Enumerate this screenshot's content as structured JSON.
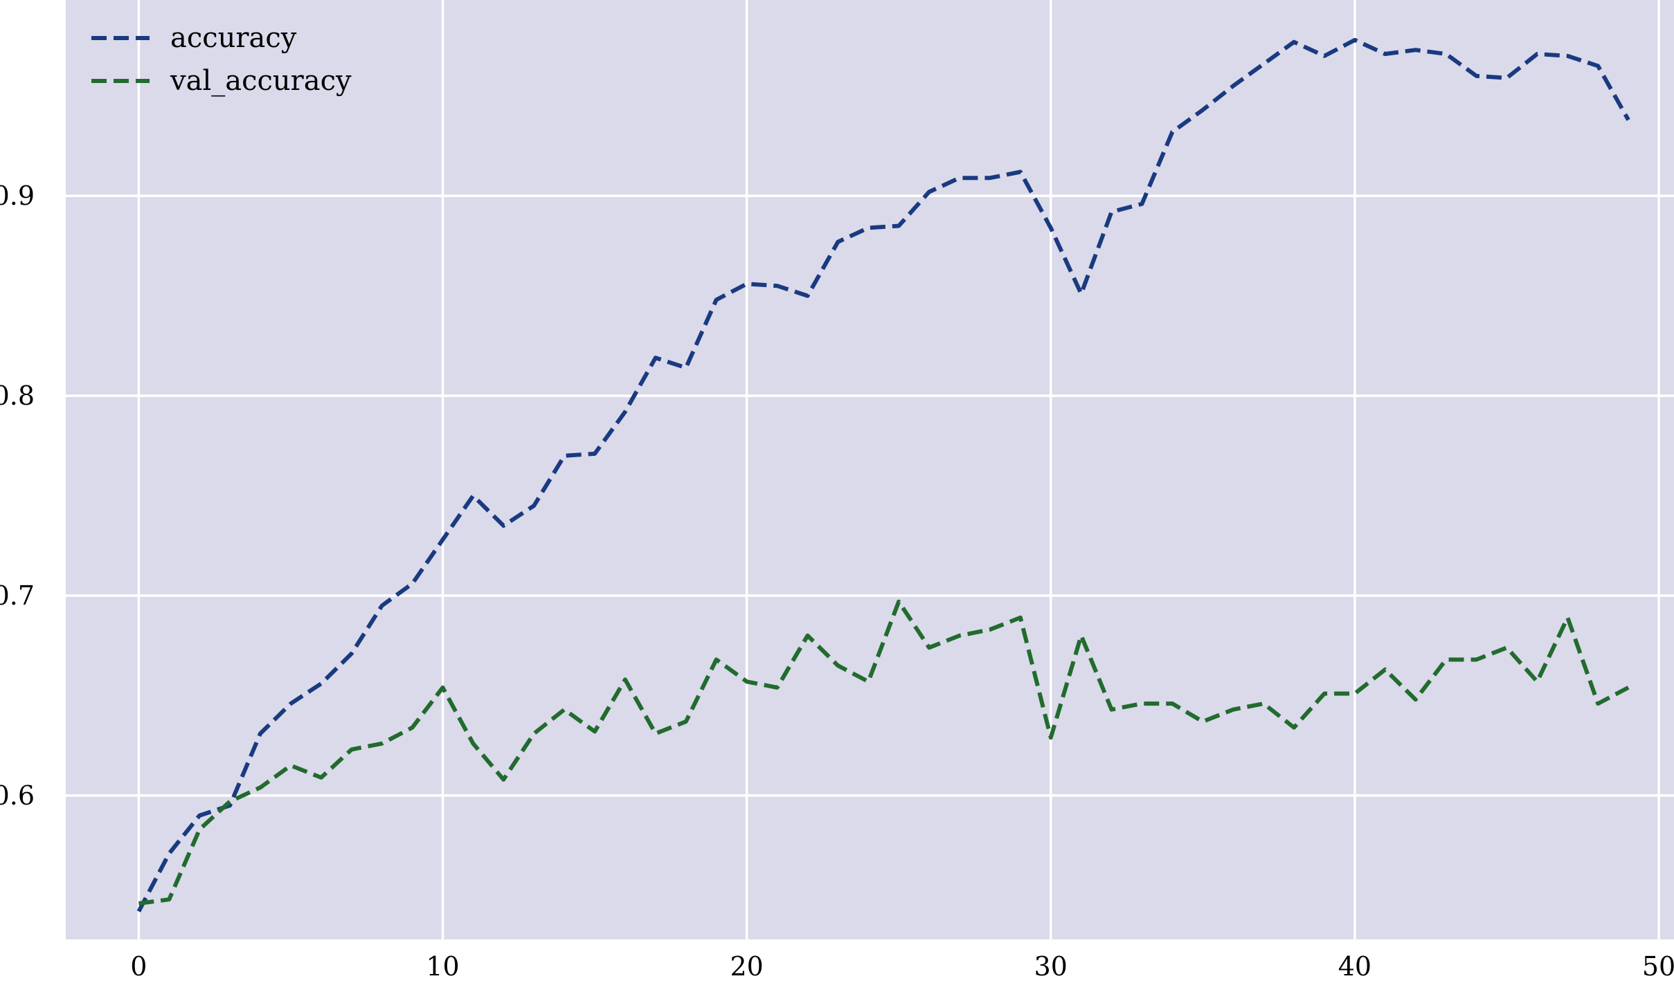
{
  "chart_data": {
    "type": "line",
    "title": "",
    "xlabel": "",
    "ylabel": "",
    "xlim": [
      -2.4,
      50.5
    ],
    "ylim": [
      0.528,
      0.998
    ],
    "x_ticks": [
      0,
      10,
      20,
      30,
      40,
      50
    ],
    "y_ticks": [
      0.6,
      0.7,
      0.8,
      0.9
    ],
    "x_tick_labels": [
      "0",
      "10",
      "20",
      "30",
      "40",
      "50"
    ],
    "y_tick_labels": [
      "0.6",
      "0.7",
      "0.8",
      "0.9"
    ],
    "grid": true,
    "background_color": "#dadaea",
    "grid_color": "#ffffff",
    "legend_position": "upper-left",
    "x": [
      0,
      1,
      2,
      3,
      4,
      5,
      6,
      7,
      8,
      9,
      10,
      11,
      12,
      13,
      14,
      15,
      16,
      17,
      18,
      19,
      20,
      21,
      22,
      23,
      24,
      25,
      26,
      27,
      28,
      29,
      30,
      31,
      32,
      33,
      34,
      35,
      36,
      37,
      38,
      39,
      40,
      41,
      42,
      43,
      44,
      45,
      46,
      47,
      48,
      49
    ],
    "series": [
      {
        "name": "accuracy",
        "color": "#1a3a80",
        "line_style": "dashed",
        "values": [
          0.542,
          0.571,
          0.59,
          0.595,
          0.631,
          0.646,
          0.656,
          0.671,
          0.695,
          0.706,
          0.728,
          0.75,
          0.735,
          0.745,
          0.77,
          0.771,
          0.792,
          0.819,
          0.814,
          0.848,
          0.856,
          0.855,
          0.85,
          0.877,
          0.884,
          0.885,
          0.902,
          0.909,
          0.909,
          0.912,
          0.884,
          0.851,
          0.892,
          0.896,
          0.932,
          0.943,
          0.955,
          0.966,
          0.977,
          0.97,
          0.978,
          0.971,
          0.973,
          0.971,
          0.96,
          0.959,
          0.971,
          0.97,
          0.965,
          0.938
        ]
      },
      {
        "name": "val_accuracy",
        "color": "#226b2e",
        "line_style": "dashed",
        "values": [
          0.546,
          0.548,
          0.583,
          0.597,
          0.604,
          0.615,
          0.609,
          0.623,
          0.626,
          0.634,
          0.654,
          0.626,
          0.608,
          0.631,
          0.643,
          0.632,
          0.658,
          0.631,
          0.637,
          0.668,
          0.657,
          0.654,
          0.68,
          0.665,
          0.657,
          0.697,
          0.674,
          0.68,
          0.683,
          0.689,
          0.629,
          0.68,
          0.643,
          0.646,
          0.646,
          0.637,
          0.643,
          0.646,
          0.634,
          0.651,
          0.651,
          0.663,
          0.648,
          0.668,
          0.668,
          0.674,
          0.657,
          0.689,
          0.646,
          0.654
        ]
      }
    ]
  }
}
